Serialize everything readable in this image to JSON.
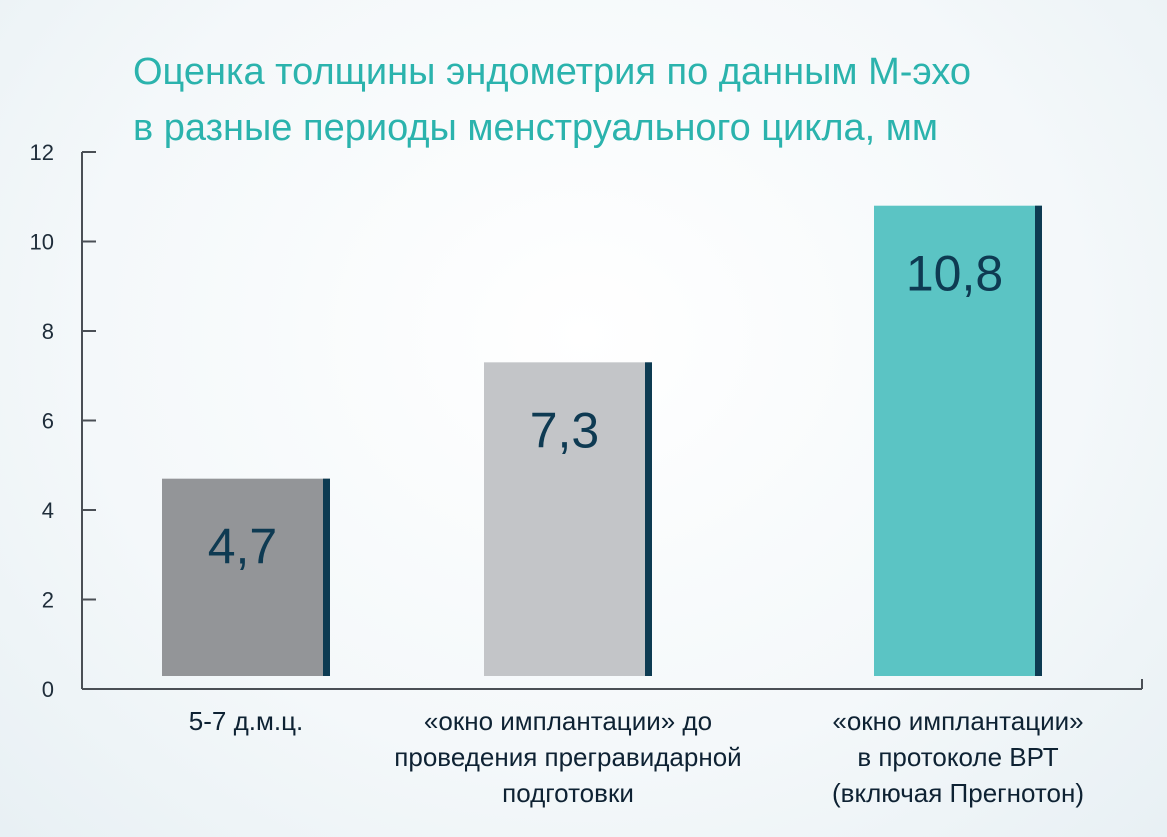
{
  "chart_data": {
    "type": "bar",
    "title_lines": [
      "Оценка толщины эндометрия по данным М-эхо",
      "в разные периоды менструального цикла, мм"
    ],
    "categories": [
      [
        "5-7 д.м.ц."
      ],
      [
        "«окно имплантации» до",
        "проведения прегравидарной",
        "подготовки"
      ],
      [
        "«окно имплантации»",
        "в протоколе ВРТ",
        "(включая Прегнотон)"
      ]
    ],
    "values": [
      4.7,
      7.3,
      10.8
    ],
    "value_labels": [
      "4,7",
      "7,3",
      "10,8"
    ],
    "bar_colors": [
      "#939598",
      "#c3c5c8",
      "#5bc4c4"
    ],
    "bar_edge_color": "#0d3b52",
    "title_color": "#2bb3ad",
    "axis_color": "#4a4f55",
    "ylim": [
      0,
      12
    ],
    "yticks": [
      0,
      2,
      4,
      6,
      8,
      10,
      12
    ],
    "xlabel": "",
    "ylabel": "",
    "grid": false,
    "legend": "none"
  }
}
